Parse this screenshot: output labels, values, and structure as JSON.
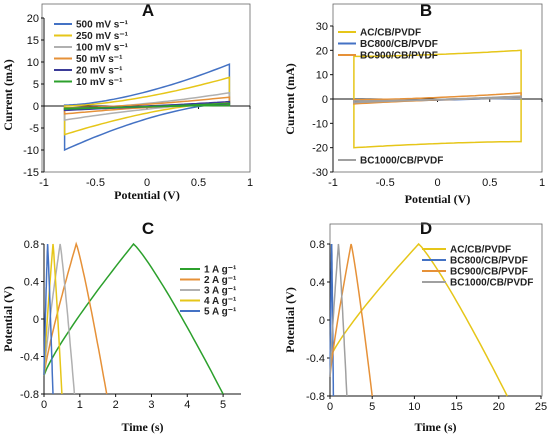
{
  "chart_data": [
    {
      "id": "A",
      "type": "line",
      "panel_label": "A",
      "xlabel": "Potential (V)",
      "ylabel": "Current (mA)",
      "xlim": [
        -1,
        1
      ],
      "ylim": [
        -15,
        20
      ],
      "xticks": [
        "-1",
        "-0.5",
        "0",
        "0.5",
        "1"
      ],
      "yticks": [
        "-15",
        "-10",
        "-5",
        "0",
        "5",
        "10",
        "15",
        "20"
      ],
      "legend_position": "top-left",
      "series": [
        {
          "name": "500 mV s⁻¹",
          "color": "#4472c4",
          "cv": {
            "xmin": -0.8,
            "xmax": 0.8,
            "top_left": 0.2,
            "top_right": 9.5,
            "bot_left": -10,
            "bot_right": 0.6
          }
        },
        {
          "name": "250 mV s⁻¹",
          "color": "#e6c619",
          "cv": {
            "xmin": -0.8,
            "xmax": 0.8,
            "top_left": 0.0,
            "top_right": 6.5,
            "bot_left": -6.5,
            "bot_right": 0.8
          }
        },
        {
          "name": "100 mV s⁻¹",
          "color": "#b0b0b0",
          "cv": {
            "xmin": -0.8,
            "xmax": 0.8,
            "top_left": -0.6,
            "top_right": 3.0,
            "bot_left": -3.2,
            "bot_right": 0.5
          }
        },
        {
          "name": "50 mV s⁻¹",
          "color": "#e69138",
          "cv": {
            "xmin": -0.8,
            "xmax": 0.8,
            "top_left": -0.4,
            "top_right": 2.0,
            "bot_left": -1.8,
            "bot_right": 0.4
          }
        },
        {
          "name": "20 mV s⁻¹",
          "color": "#3b3b98",
          "cv": {
            "xmin": -0.8,
            "xmax": 0.8,
            "top_left": -0.5,
            "top_right": 1.0,
            "bot_left": -1.0,
            "bot_right": 0.2
          }
        },
        {
          "name": "10 mV s⁻¹",
          "color": "#2ca02c",
          "cv": {
            "xmin": -0.8,
            "xmax": 0.8,
            "top_left": -0.5,
            "top_right": 0.6,
            "bot_left": -0.7,
            "bot_right": 0.1
          }
        }
      ]
    },
    {
      "id": "B",
      "type": "line",
      "panel_label": "B",
      "xlabel": "Potential (V)",
      "ylabel": "Current (mA)",
      "xlim": [
        -1,
        1
      ],
      "ylim": [
        -30,
        30
      ],
      "xticks": [
        "-1",
        "-0.5",
        "0",
        "0.5",
        "1"
      ],
      "yticks": [
        "-30",
        "-20",
        "-10",
        "0",
        "10",
        "20",
        "30"
      ],
      "legend_position": "top-left",
      "series": [
        {
          "name": "AC/CB/PVDF",
          "color": "#e6c619",
          "cv": {
            "xmin": -0.8,
            "xmax": 0.8,
            "top_left": 17.5,
            "top_right": 20,
            "bot_left": -20,
            "bot_right": -17.5
          }
        },
        {
          "name": "BC800/CB/PVDF",
          "color": "#4472c4",
          "cv": {
            "xmin": -0.8,
            "xmax": 0.8,
            "top_left": -1.0,
            "top_right": 0.6,
            "bot_left": -1.4,
            "bot_right": 0.2
          }
        },
        {
          "name": "BC900/CB/PVDF",
          "color": "#e69138",
          "cv": {
            "xmin": -0.8,
            "xmax": 0.8,
            "top_left": -0.3,
            "top_right": 2.5,
            "bot_left": -2.0,
            "bot_right": 0.4
          }
        },
        {
          "name": "BC1000/CB/PVDF",
          "color": "#a0a0a0",
          "cv": {
            "xmin": -0.8,
            "xmax": 0.8,
            "top_left": -0.8,
            "top_right": 1.2,
            "bot_left": -1.5,
            "bot_right": 0.3
          }
        }
      ]
    },
    {
      "id": "C",
      "type": "line",
      "panel_label": "C",
      "xlabel": "Time (s)",
      "ylabel": "Potential (V)",
      "xlim": [
        0,
        5.5
      ],
      "ylim": [
        -0.8,
        0.8
      ],
      "xticks": [
        "0",
        "1",
        "2",
        "3",
        "4",
        "5"
      ],
      "yticks": [
        "-0.8",
        "-0.4",
        "0",
        "0.4",
        "0.8"
      ],
      "legend_position": "right",
      "series": [
        {
          "name": "1 A g⁻¹",
          "color": "#2ca02c",
          "gcd": {
            "t_peak": 2.5,
            "t_end": 5.0,
            "v_start": -0.6
          }
        },
        {
          "name": "2 A g⁻¹",
          "color": "#e69138",
          "gcd": {
            "t_peak": 0.9,
            "t_end": 1.75,
            "v_start": -0.6
          }
        },
        {
          "name": "3 A g⁻¹",
          "color": "#b0b0b0",
          "gcd": {
            "t_peak": 0.45,
            "t_end": 0.85,
            "v_start": -0.6
          }
        },
        {
          "name": "4 A g⁻¹",
          "color": "#e6c619",
          "gcd": {
            "t_peak": 0.25,
            "t_end": 0.5,
            "v_start": -0.6
          }
        },
        {
          "name": "5 A g⁻¹",
          "color": "#4472c4",
          "gcd": {
            "t_peak": 0.1,
            "t_end": 0.25,
            "v_start": -0.6
          }
        }
      ]
    },
    {
      "id": "D",
      "type": "line",
      "panel_label": "D",
      "xlabel": "Time (s)",
      "ylabel": "Potential (V)",
      "xlim": [
        0,
        25
      ],
      "ylim": [
        -0.8,
        0.8
      ],
      "xticks": [
        "0",
        "5",
        "10",
        "15",
        "20",
        "25"
      ],
      "yticks": [
        "-0.8",
        "-0.4",
        "0",
        "0.4",
        "0.8"
      ],
      "legend_position": "top-right",
      "series": [
        {
          "name": "AC/CB/PVDF",
          "color": "#e6c619",
          "gcd": {
            "t_peak": 10.5,
            "t_end": 21.0,
            "v_start": -0.4
          }
        },
        {
          "name": "BC800/CB/PVDF",
          "color": "#4472c4",
          "gcd": {
            "t_peak": 0.2,
            "t_end": 0.4,
            "v_start": -0.6
          }
        },
        {
          "name": "BC900/CB/PVDF",
          "color": "#e69138",
          "gcd": {
            "t_peak": 2.5,
            "t_end": 5.0,
            "v_start": -0.6
          }
        },
        {
          "name": "BC1000/CB/PVDF",
          "color": "#a0a0a0",
          "gcd": {
            "t_peak": 1.0,
            "t_end": 2.0,
            "v_start": -0.6
          }
        }
      ]
    }
  ]
}
